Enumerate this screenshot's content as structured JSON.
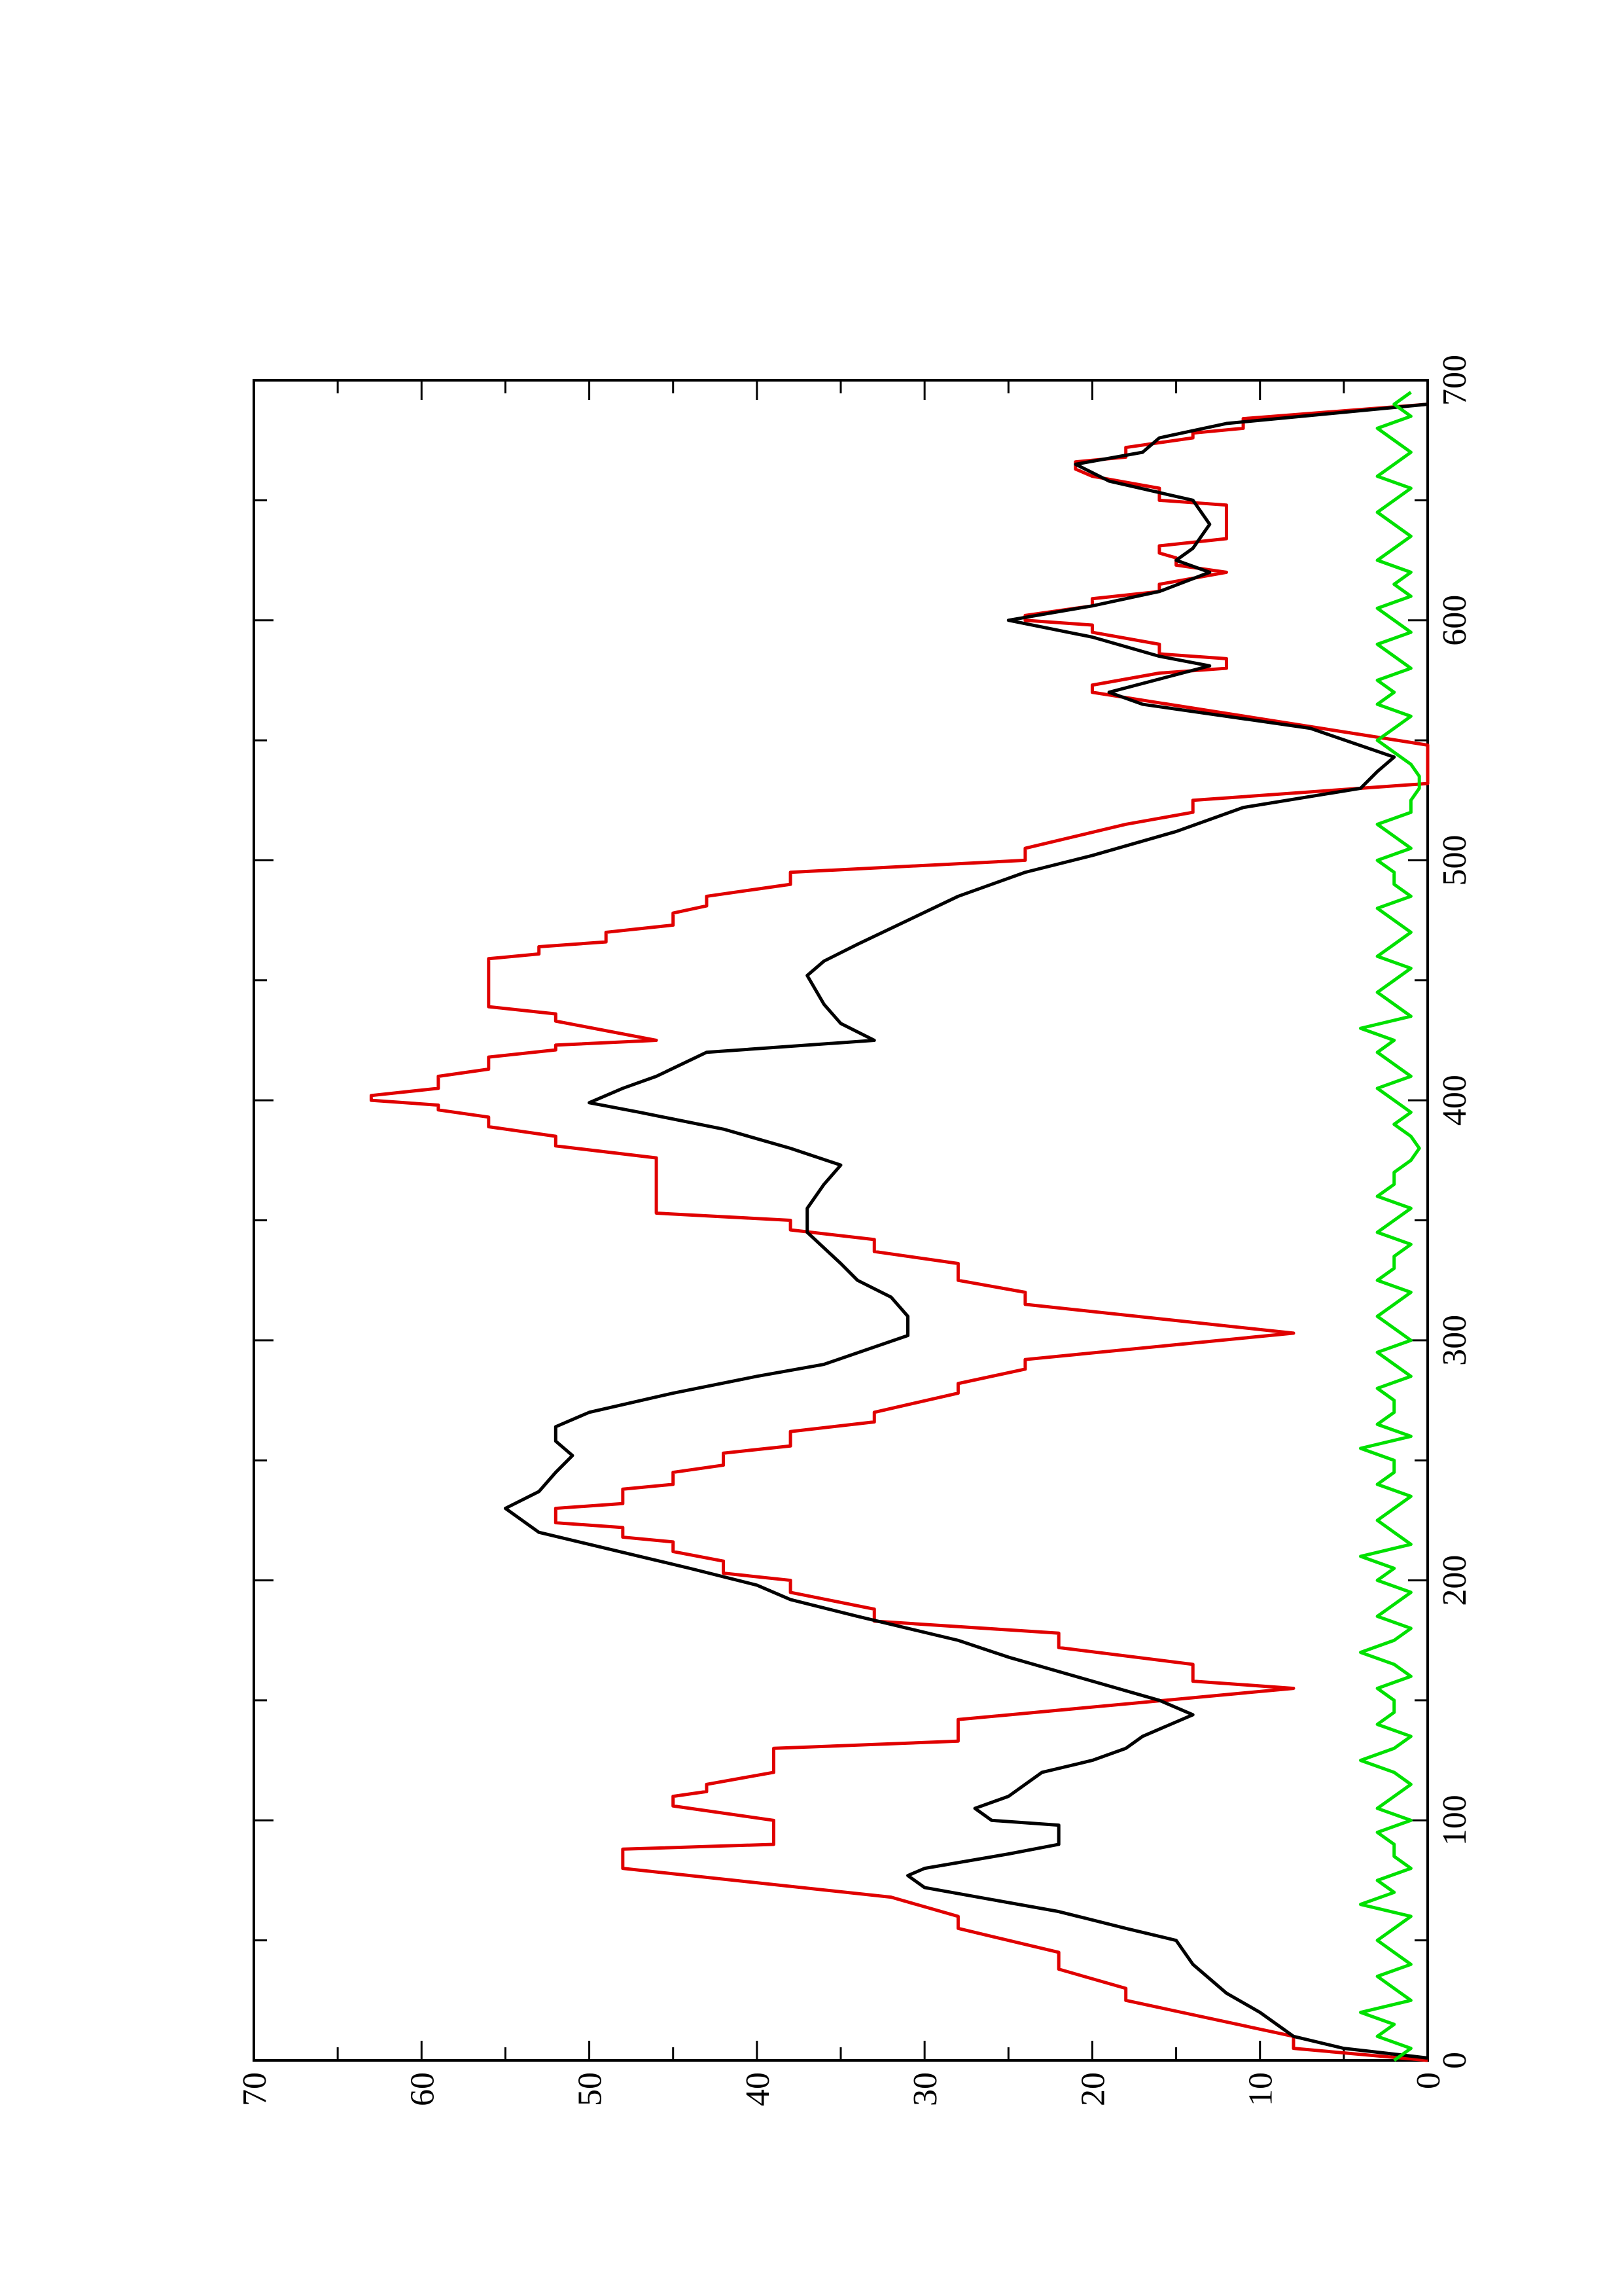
{
  "chart_data": {
    "type": "line",
    "rotated": true,
    "xlim": [
      0,
      700
    ],
    "xticks": [
      0,
      100,
      200,
      300,
      400,
      500,
      600,
      700
    ],
    "ylim": [
      0,
      70
    ],
    "yticks": [
      0,
      10,
      20,
      30,
      40,
      50,
      60,
      70
    ],
    "series": [
      {
        "color": "#e00000",
        "x": [
          0,
          5,
          10,
          25,
          30,
          38,
          45,
          55,
          60,
          68,
          80,
          88,
          90,
          100,
          106,
          110,
          112,
          115,
          120,
          130,
          133,
          142,
          155,
          158,
          165,
          172,
          178,
          183,
          188,
          195,
          200,
          203,
          208,
          212,
          216,
          218,
          222,
          224,
          230,
          232,
          238,
          240,
          245,
          248,
          253,
          256,
          262,
          266,
          270,
          278,
          282,
          288,
          292,
          303,
          315,
          320,
          325,
          332,
          337,
          342,
          346,
          350,
          353,
          376,
          381,
          385,
          389,
          393,
          396,
          398,
          400,
          402,
          405,
          410,
          413,
          418,
          421,
          423,
          425,
          433,
          436,
          439,
          459,
          461,
          464,
          466,
          470,
          473,
          478,
          481,
          485,
          490,
          495,
          500,
          505,
          515,
          520,
          525,
          532,
          548,
          570,
          573,
          578,
          580,
          584,
          586,
          590,
          595,
          598,
          600,
          602,
          606,
          609,
          612,
          615,
          620,
          623,
          626,
          628,
          631,
          634,
          648,
          650,
          655,
          660,
          663,
          666,
          668,
          672,
          676,
          678,
          680,
          684,
          690
        ],
        "values": [
          0,
          8,
          8,
          18,
          18,
          22,
          22,
          28,
          28,
          32,
          48,
          48,
          39,
          39,
          45,
          45,
          43,
          43,
          39,
          39,
          28,
          28,
          8,
          14,
          14,
          22,
          22,
          33,
          33,
          38,
          38,
          42,
          42,
          45,
          45,
          48,
          48,
          52,
          52,
          48,
          48,
          45,
          45,
          42,
          42,
          38,
          38,
          33,
          33,
          28,
          28,
          24,
          24,
          8,
          24,
          24,
          28,
          28,
          33,
          33,
          38,
          38,
          46,
          46,
          52,
          52,
          56,
          56,
          59,
          59,
          63,
          63,
          59,
          59,
          56,
          56,
          52,
          52,
          46,
          52,
          52,
          56,
          56,
          53,
          53,
          49,
          49,
          45,
          45,
          43,
          43,
          38,
          38,
          24,
          24,
          18,
          14,
          14,
          0,
          0,
          20,
          20,
          16,
          12,
          12,
          16,
          16,
          20,
          20,
          24,
          24,
          20,
          20,
          16,
          16,
          12,
          15,
          15,
          16,
          16,
          12,
          12,
          16,
          16,
          20,
          21,
          21,
          18,
          18,
          14,
          14,
          11,
          11,
          0
        ]
      },
      {
        "color": "#000000",
        "x": [
          1,
          5,
          10,
          20,
          28,
          40,
          50,
          55,
          62,
          67,
          72,
          77,
          80,
          86,
          90,
          98,
          100,
          105,
          110,
          120,
          125,
          130,
          135,
          144,
          150,
          160,
          168,
          175,
          185,
          192,
          198,
          205,
          210,
          215,
          220,
          230,
          237,
          245,
          252,
          258,
          264,
          270,
          278,
          285,
          290,
          302,
          310,
          318,
          325,
          332,
          345,
          355,
          365,
          373,
          380,
          388,
          395,
          399,
          405,
          410,
          420,
          425,
          432,
          440,
          452,
          458,
          465,
          475,
          485,
          495,
          502,
          512,
          522,
          530,
          537,
          543,
          555,
          565,
          570,
          581,
          585,
          593,
          600,
          606,
          612,
          620,
          625,
          630,
          640,
          650,
          658,
          665,
          670,
          676,
          682,
          690
        ],
        "values": [
          0,
          5,
          8,
          10,
          12,
          14,
          15,
          18,
          22,
          26,
          30,
          31,
          30,
          25,
          22,
          22,
          26,
          27,
          25,
          23,
          20,
          18,
          17,
          14,
          16,
          21,
          25,
          28,
          34,
          38,
          40,
          44,
          47,
          50,
          53,
          55,
          53,
          52,
          51,
          52,
          52,
          50,
          45,
          40,
          36,
          31,
          31,
          32,
          34,
          35,
          37,
          37,
          36,
          35,
          38,
          42,
          47,
          50,
          48,
          46,
          43,
          33,
          35,
          36,
          37,
          36,
          34,
          31,
          28,
          24,
          20,
          15,
          11,
          4,
          3,
          2,
          7,
          17,
          19,
          13,
          16,
          20,
          25,
          20,
          16,
          13,
          15,
          14,
          13,
          14,
          19,
          21,
          17,
          16,
          12,
          0
        ]
      },
      {
        "color": "#00e000",
        "x": [
          0,
          5,
          10,
          15,
          20,
          25,
          30,
          35,
          40,
          45,
          50,
          55,
          60,
          65,
          70,
          75,
          80,
          85,
          90,
          95,
          100,
          105,
          110,
          115,
          120,
          125,
          130,
          135,
          140,
          145,
          150,
          155,
          160,
          165,
          170,
          175,
          180,
          185,
          190,
          195,
          200,
          205,
          210,
          215,
          220,
          225,
          230,
          235,
          240,
          245,
          250,
          255,
          260,
          265,
          270,
          275,
          280,
          285,
          290,
          295,
          300,
          305,
          310,
          315,
          320,
          325,
          330,
          335,
          340,
          345,
          350,
          355,
          360,
          365,
          370,
          375,
          380,
          385,
          390,
          395,
          400,
          405,
          410,
          415,
          420,
          425,
          430,
          435,
          440,
          445,
          450,
          455,
          460,
          465,
          470,
          475,
          480,
          485,
          490,
          495,
          500,
          505,
          510,
          515,
          520,
          525,
          530,
          535,
          540,
          545,
          550,
          555,
          560,
          565,
          570,
          575,
          580,
          585,
          590,
          595,
          600,
          605,
          610,
          615,
          620,
          625,
          630,
          635,
          640,
          645,
          650,
          655,
          660,
          665,
          670,
          675,
          680,
          685,
          690,
          695
        ],
        "values": [
          2,
          1,
          3,
          2,
          4,
          1,
          2,
          3,
          1,
          2,
          3,
          2,
          1,
          4,
          2,
          3,
          1,
          2,
          2,
          3,
          1,
          3,
          2,
          1,
          2,
          4,
          2,
          1,
          3,
          2,
          2,
          3,
          1,
          2,
          4,
          2,
          1,
          3,
          2,
          1,
          3,
          2,
          4,
          1,
          2,
          3,
          2,
          1,
          3,
          2,
          2,
          4,
          1,
          3,
          2,
          2,
          3,
          1,
          2,
          3,
          1,
          2,
          3,
          2,
          1,
          3,
          2,
          2,
          1,
          3,
          2,
          1,
          3,
          2,
          2,
          1,
          0.5,
          1,
          2,
          1,
          2,
          3,
          1,
          2,
          3,
          2,
          4,
          1,
          2,
          3,
          2,
          1,
          3,
          2,
          1,
          2,
          3,
          1,
          2,
          2,
          3,
          1,
          2,
          3,
          1,
          1,
          0.5,
          0.5,
          1,
          2,
          3,
          2,
          1,
          3,
          2,
          3,
          1,
          2,
          3,
          1,
          2,
          3,
          1,
          2,
          1,
          3,
          2,
          1,
          2,
          3,
          2,
          1,
          3,
          2,
          1,
          2,
          3,
          1,
          2,
          1
        ]
      }
    ]
  }
}
